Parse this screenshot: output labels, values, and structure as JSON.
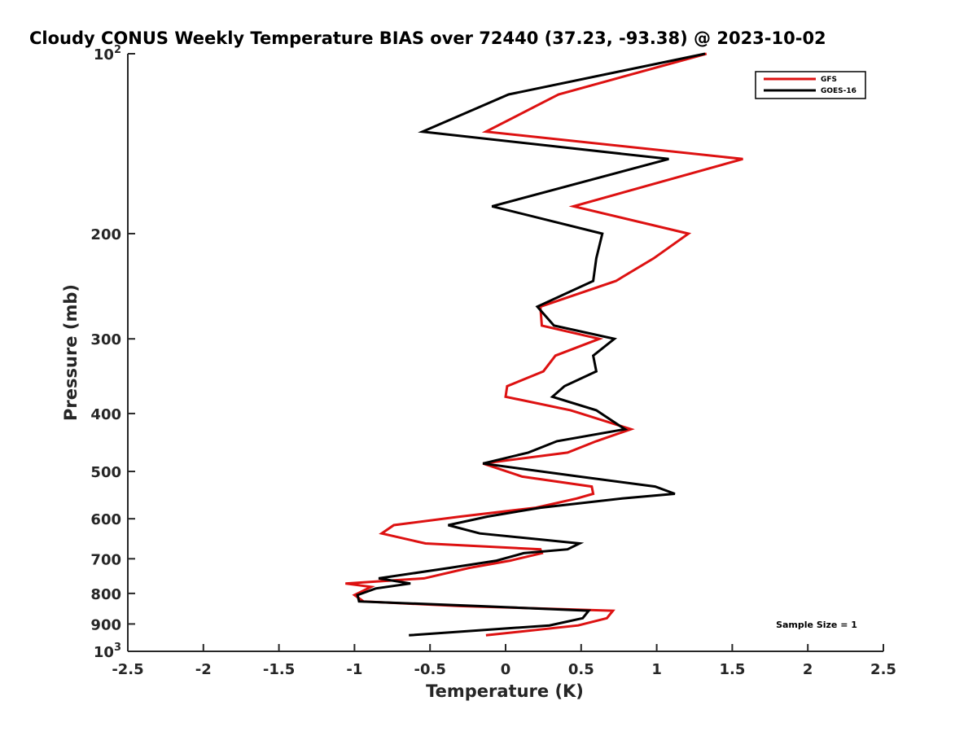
{
  "chart_data": {
    "type": "line",
    "title": "Cloudy CONUS Weekly Temperature BIAS over 72440 (37.23, -93.38) @ 2023-10-02",
    "xlabel": "Temperature (K)",
    "ylabel": "Pressure (mb)",
    "xlim": [
      -2.5,
      2.5
    ],
    "ylim": [
      1000,
      100
    ],
    "y_scale": "log",
    "y_reversed": true,
    "grid": false,
    "legend_position": "top-right",
    "annotation": "Sample Size = 1",
    "x_ticks": [
      {
        "value": -2.5,
        "label": "-2.5"
      },
      {
        "value": -2,
        "label": "-2"
      },
      {
        "value": -1.5,
        "label": "-1.5"
      },
      {
        "value": -1,
        "label": "-1"
      },
      {
        "value": -0.5,
        "label": "-0.5"
      },
      {
        "value": 0,
        "label": "0"
      },
      {
        "value": 0.5,
        "label": "0.5"
      },
      {
        "value": 1,
        "label": "1"
      },
      {
        "value": 1.5,
        "label": "1.5"
      },
      {
        "value": 2,
        "label": "2"
      },
      {
        "value": 2.5,
        "label": "2.5"
      }
    ],
    "y_ticks": [
      {
        "value": 100,
        "label": "10",
        "sup": "2"
      },
      {
        "value": 200,
        "label": "200",
        "sup": ""
      },
      {
        "value": 300,
        "label": "300",
        "sup": ""
      },
      {
        "value": 400,
        "label": "400",
        "sup": ""
      },
      {
        "value": 500,
        "label": "500",
        "sup": ""
      },
      {
        "value": 600,
        "label": "600",
        "sup": ""
      },
      {
        "value": 700,
        "label": "700",
        "sup": ""
      },
      {
        "value": 800,
        "label": "800",
        "sup": ""
      },
      {
        "value": 900,
        "label": "900",
        "sup": ""
      },
      {
        "value": 1000,
        "label": "10",
        "sup": "3"
      }
    ],
    "series": [
      {
        "name": "GFS",
        "color": "#dd1111",
        "points": [
          [
            1.33,
            100
          ],
          [
            0.35,
            117
          ],
          [
            -0.13,
            135
          ],
          [
            1.57,
            150
          ],
          [
            0.45,
            180
          ],
          [
            1.21,
            200
          ],
          [
            0.98,
            220
          ],
          [
            0.73,
            240
          ],
          [
            0.23,
            265
          ],
          [
            0.24,
            285
          ],
          [
            0.62,
            300
          ],
          [
            0.33,
            320
          ],
          [
            0.25,
            340
          ],
          [
            0.01,
            360
          ],
          [
            0.0,
            375
          ],
          [
            0.43,
            395
          ],
          [
            0.83,
            425
          ],
          [
            0.6,
            445
          ],
          [
            0.41,
            465
          ],
          [
            -0.15,
            485
          ],
          [
            0.11,
            510
          ],
          [
            0.57,
            530
          ],
          [
            0.58,
            545
          ],
          [
            0.47,
            555
          ],
          [
            0.2,
            575
          ],
          [
            -0.3,
            595
          ],
          [
            -0.74,
            615
          ],
          [
            -0.82,
            635
          ],
          [
            -0.53,
            660
          ],
          [
            0.23,
            675
          ],
          [
            0.24,
            685
          ],
          [
            0.03,
            705
          ],
          [
            -0.24,
            725
          ],
          [
            -0.54,
            755
          ],
          [
            -1.06,
            770
          ],
          [
            -0.89,
            780
          ],
          [
            -1.0,
            805
          ],
          [
            -0.94,
            825
          ],
          [
            -0.3,
            840
          ],
          [
            0.71,
            855
          ],
          [
            0.67,
            880
          ],
          [
            0.48,
            905
          ],
          [
            -0.13,
            940
          ]
        ]
      },
      {
        "name": "GOES-16",
        "color": "#000000",
        "points": [
          [
            1.32,
            100
          ],
          [
            0.02,
            117
          ],
          [
            -0.55,
            135
          ],
          [
            1.08,
            150
          ],
          [
            -0.09,
            180
          ],
          [
            0.64,
            200
          ],
          [
            0.6,
            220
          ],
          [
            0.58,
            240
          ],
          [
            0.21,
            265
          ],
          [
            0.32,
            285
          ],
          [
            0.72,
            300
          ],
          [
            0.58,
            320
          ],
          [
            0.6,
            340
          ],
          [
            0.39,
            360
          ],
          [
            0.31,
            375
          ],
          [
            0.6,
            395
          ],
          [
            0.79,
            425
          ],
          [
            0.34,
            445
          ],
          [
            0.15,
            465
          ],
          [
            -0.15,
            485
          ],
          [
            0.49,
            510
          ],
          [
            0.99,
            530
          ],
          [
            1.12,
            545
          ],
          [
            0.77,
            555
          ],
          [
            0.23,
            575
          ],
          [
            -0.12,
            595
          ],
          [
            -0.38,
            615
          ],
          [
            -0.17,
            635
          ],
          [
            0.49,
            660
          ],
          [
            0.41,
            675
          ],
          [
            0.12,
            685
          ],
          [
            -0.06,
            705
          ],
          [
            -0.37,
            725
          ],
          [
            -0.84,
            755
          ],
          [
            -0.63,
            770
          ],
          [
            -0.86,
            785
          ],
          [
            -0.98,
            805
          ],
          [
            -0.97,
            825
          ],
          [
            -0.18,
            840
          ],
          [
            0.55,
            855
          ],
          [
            0.51,
            880
          ],
          [
            0.29,
            905
          ],
          [
            -0.64,
            940
          ]
        ]
      }
    ]
  }
}
